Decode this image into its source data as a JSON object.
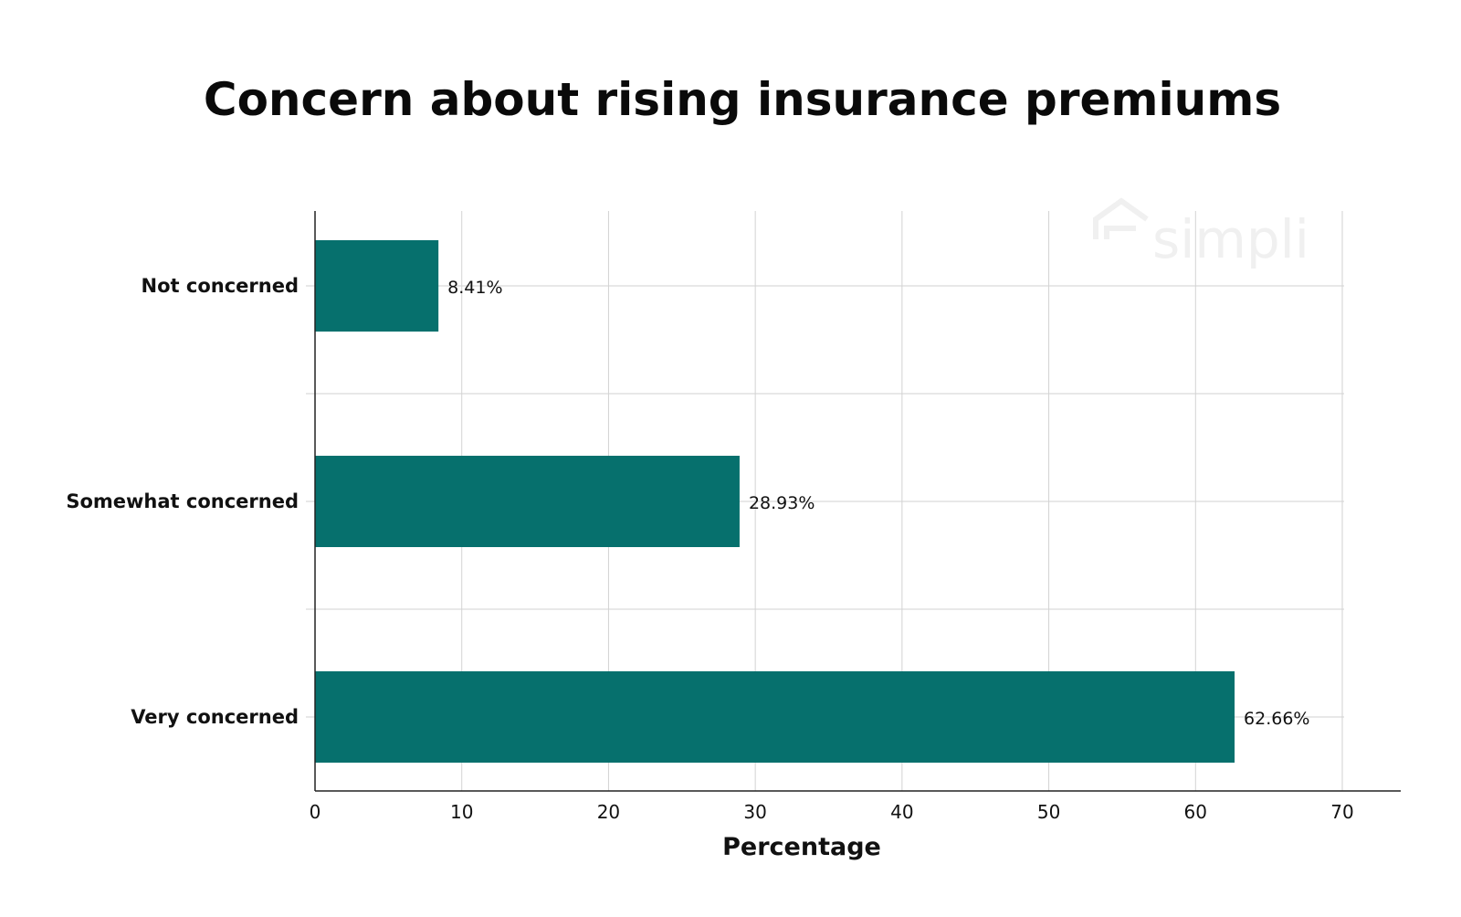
{
  "chart_data": {
    "type": "bar",
    "orientation": "horizontal",
    "title": "Concern about rising insurance premiums",
    "xlabel": "Percentage",
    "ylabel": "",
    "categories": [
      "Not concerned",
      "Somewhat concerned",
      "Very concerned"
    ],
    "values": [
      8.41,
      28.93,
      62.66
    ],
    "value_labels": [
      "8.41%",
      "28.93%",
      "62.66%"
    ],
    "xlim": [
      0,
      70
    ],
    "xticks": [
      0,
      10,
      20,
      30,
      40,
      50,
      60,
      70
    ],
    "xtick_labels": [
      "0",
      "10",
      "20",
      "30",
      "40",
      "50",
      "60",
      "70"
    ],
    "grid": true,
    "bar_color": "#06706d",
    "watermark": "simpli"
  }
}
